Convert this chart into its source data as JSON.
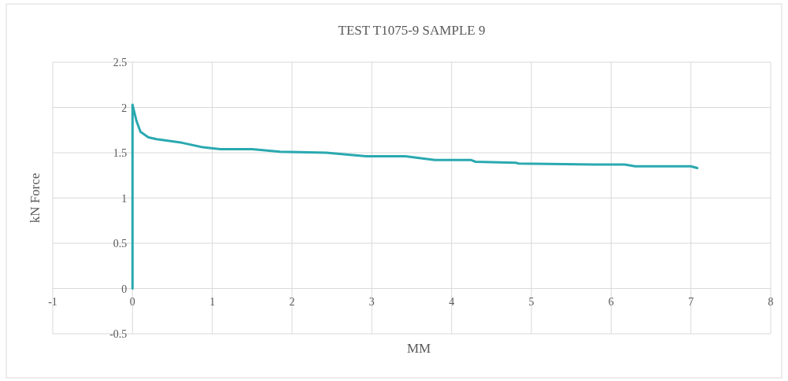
{
  "chart_data": {
    "type": "line",
    "title": "TEST T1075-9 SAMPLE 9",
    "xlabel": "MM",
    "ylabel": "kN Force",
    "series": [
      {
        "color": "#2aa9b0",
        "x": [
          0,
          0,
          0.05,
          0.1,
          0.2,
          0.3,
          0.62,
          0.88,
          1.1,
          1.5,
          1.85,
          2.43,
          2.93,
          3.42,
          3.79,
          4.24,
          4.3,
          4.8,
          4.84,
          5.78,
          6.17,
          6.3,
          7.0,
          7.08
        ],
        "values": [
          0,
          2.03,
          1.85,
          1.73,
          1.67,
          1.65,
          1.61,
          1.56,
          1.54,
          1.54,
          1.51,
          1.5,
          1.46,
          1.46,
          1.42,
          1.42,
          1.4,
          1.39,
          1.38,
          1.37,
          1.37,
          1.35,
          1.35,
          1.33
        ]
      }
    ],
    "xlim": [
      -1,
      8
    ],
    "xticks": [
      -1,
      0,
      1,
      2,
      3,
      4,
      5,
      6,
      7,
      8
    ],
    "ylim": [
      -0.5,
      2.5
    ],
    "yticks": [
      -0.5,
      0,
      0.5,
      1,
      1.5,
      2,
      2.5
    ],
    "grid": true,
    "marker": "none",
    "line_style": "solid"
  }
}
